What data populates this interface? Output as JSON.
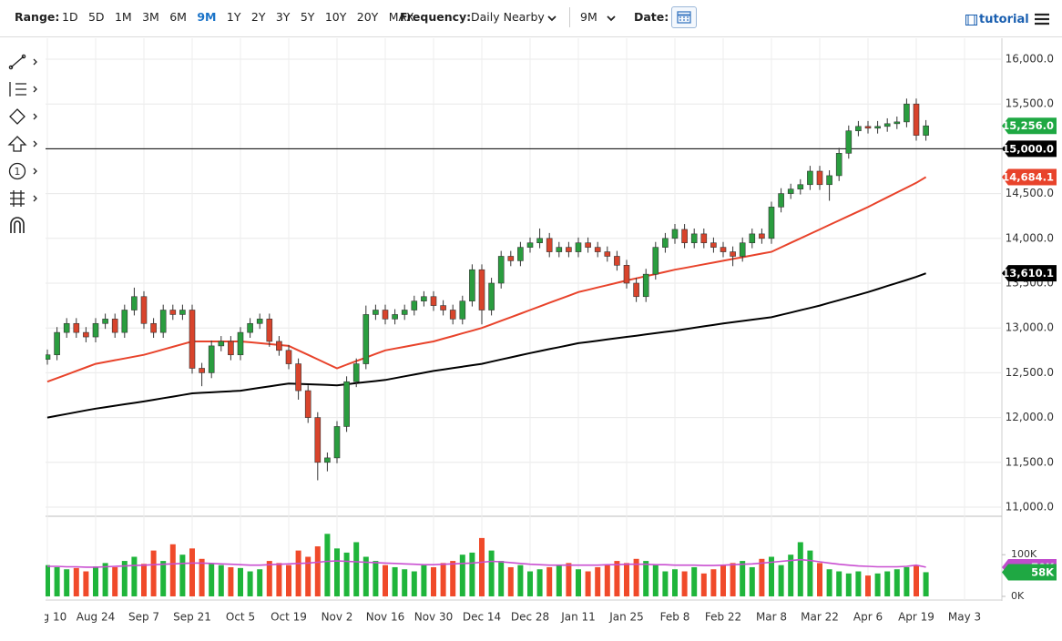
{
  "toolbar": {
    "range_label": "Range:",
    "ranges": [
      "1D",
      "5D",
      "1M",
      "3M",
      "6M",
      "9M",
      "1Y",
      "2Y",
      "3Y",
      "5Y",
      "10Y",
      "20Y",
      "MAX"
    ],
    "active_range": "9M",
    "frequency_label": "Frequency:",
    "frequency": "Daily Nearby",
    "period": "9M",
    "date_label": "Date:",
    "tutorial": "tutorial",
    "tool_badge": "1"
  },
  "chart_data": {
    "type": "candlestick",
    "categories": [
      "Aug 10",
      null,
      null,
      null,
      null,
      "Aug 24",
      null,
      null,
      null,
      null,
      "Sep 7",
      null,
      null,
      null,
      null,
      "Sep 21",
      null,
      null,
      null,
      null,
      "Oct 5",
      null,
      null,
      null,
      null,
      "Oct 19",
      null,
      null,
      null,
      null,
      "Nov 2",
      null,
      null,
      null,
      null,
      "Nov 16",
      null,
      null,
      null,
      null,
      "Nov 30",
      null,
      null,
      null,
      null,
      "Dec 14",
      null,
      null,
      null,
      null,
      "Dec 28",
      null,
      null,
      null,
      null,
      "Jan 11",
      null,
      null,
      null,
      null,
      "Jan 25",
      null,
      null,
      null,
      null,
      "Feb 8",
      null,
      null,
      null,
      null,
      "Feb 22",
      null,
      null,
      null,
      null,
      "Mar 8",
      null,
      null,
      null,
      null,
      "Mar 22",
      null,
      null,
      null,
      null,
      "Apr 6",
      null,
      null,
      null,
      null,
      "Apr 19",
      null,
      null,
      null,
      null,
      "May 3"
    ],
    "candles": {
      "open": [
        12650,
        12700,
        12950,
        13050,
        12950,
        12900,
        13050,
        13100,
        12950,
        13200,
        13350,
        13050,
        12950,
        13200,
        13150,
        13200,
        12550,
        12500,
        12800,
        12850,
        12700,
        12950,
        13050,
        13100,
        12850,
        12750,
        12600,
        12300,
        12000,
        11500,
        11550,
        11900,
        12400,
        12600,
        13150,
        13200,
        13100,
        13150,
        13200,
        13300,
        13350,
        13250,
        13200,
        13100,
        13300,
        13650,
        13200,
        13500,
        13800,
        13750,
        13900,
        13950,
        14000,
        13850,
        13900,
        13850,
        13950,
        13900,
        13850,
        13800,
        13700,
        13500,
        13350,
        13600,
        13900,
        14000,
        14100,
        13950,
        14050,
        13950,
        13900,
        13850,
        13800,
        13950,
        14050,
        14000,
        14350,
        14500,
        14550,
        14600,
        14750,
        14600,
        14700,
        14950,
        15200,
        15250,
        15230,
        15250,
        15280,
        15300,
        15500,
        15150,
        null,
        null,
        null,
        null
      ],
      "high": [
        12760,
        13010,
        13110,
        13110,
        13010,
        13110,
        13160,
        13160,
        13260,
        13450,
        13410,
        13110,
        13260,
        13260,
        13260,
        13260,
        12610,
        12860,
        12910,
        12910,
        13010,
        13110,
        13160,
        13160,
        12910,
        12810,
        12660,
        12360,
        12060,
        11610,
        11960,
        12460,
        12660,
        13250,
        13260,
        13260,
        13210,
        13260,
        13360,
        13410,
        13410,
        13310,
        13260,
        13360,
        13710,
        13710,
        13560,
        13860,
        13860,
        13960,
        14010,
        14110,
        14060,
        13960,
        13960,
        14010,
        14010,
        13960,
        13910,
        13860,
        13760,
        13560,
        13660,
        13960,
        14060,
        14160,
        14160,
        14110,
        14110,
        14010,
        13960,
        13910,
        14010,
        14110,
        14110,
        14410,
        14560,
        14610,
        14660,
        14810,
        14810,
        14760,
        15010,
        15260,
        15310,
        15310,
        15310,
        15340,
        15360,
        15560,
        15560,
        15320,
        null,
        null,
        null,
        null
      ],
      "low": [
        12590,
        12640,
        12890,
        12890,
        12840,
        12840,
        12990,
        12890,
        12890,
        13140,
        12990,
        12890,
        12890,
        13090,
        13090,
        12490,
        12350,
        12440,
        12740,
        12640,
        12640,
        12890,
        12990,
        12790,
        12690,
        12540,
        12200,
        11940,
        11300,
        11400,
        11490,
        11840,
        12340,
        12540,
        13090,
        13040,
        13040,
        13090,
        13140,
        13240,
        13190,
        13140,
        13040,
        13040,
        13240,
        13040,
        13140,
        13440,
        13690,
        13690,
        13840,
        13890,
        13790,
        13790,
        13790,
        13790,
        13840,
        13790,
        13740,
        13640,
        13440,
        13290,
        13290,
        13540,
        13840,
        13940,
        13890,
        13890,
        13890,
        13840,
        13790,
        13690,
        13740,
        13890,
        13940,
        13940,
        14290,
        14440,
        14490,
        14540,
        14540,
        14420,
        14640,
        14890,
        15140,
        15170,
        15170,
        15190,
        15220,
        15240,
        15090,
        15090,
        null,
        null,
        null,
        null
      ],
      "close": [
        12700,
        12950,
        13050,
        12950,
        12900,
        13050,
        13100,
        12950,
        13200,
        13350,
        13050,
        12950,
        13200,
        13150,
        13200,
        12550,
        12500,
        12800,
        12850,
        12700,
        12950,
        13050,
        13100,
        12850,
        12750,
        12600,
        12300,
        12000,
        11500,
        11550,
        11900,
        12400,
        12600,
        13150,
        13200,
        13100,
        13150,
        13200,
        13300,
        13350,
        13250,
        13200,
        13100,
        13300,
        13650,
        13200,
        13500,
        13800,
        13750,
        13900,
        13950,
        14000,
        13850,
        13900,
        13850,
        13950,
        13900,
        13850,
        13800,
        13700,
        13500,
        13350,
        13600,
        13900,
        14000,
        14100,
        13950,
        14050,
        13950,
        13900,
        13850,
        13800,
        13950,
        14050,
        14000,
        14350,
        14500,
        14550,
        14600,
        14750,
        14600,
        14700,
        14950,
        15200,
        15250,
        15230,
        15250,
        15280,
        15300,
        15500,
        15150,
        15256,
        null,
        null,
        null,
        null
      ],
      "up_color": "#2a9d3f",
      "down_color": "#d8442c"
    },
    "lines": [
      {
        "color": "#e8432b",
        "values": [
          12400,
          12440,
          12480,
          12520,
          12560,
          12600,
          12620,
          12640,
          12660,
          12680,
          12700,
          12730,
          12760,
          12790,
          12820,
          12850,
          12850,
          12850,
          12850,
          12850,
          12850,
          12840,
          12830,
          12820,
          12810,
          12800,
          12750,
          12700,
          12650,
          12600,
          12550,
          12590,
          12630,
          12670,
          12710,
          12750,
          12770,
          12790,
          12810,
          12830,
          12850,
          12880,
          12910,
          12940,
          12970,
          13000,
          13040,
          13080,
          13120,
          13160,
          13200,
          13240,
          13280,
          13320,
          13360,
          13400,
          13426,
          13452,
          13478,
          13504,
          13530,
          13554,
          13578,
          13602,
          13626,
          13650,
          13670,
          13690,
          13710,
          13730,
          13750,
          13770,
          13790,
          13810,
          13830,
          13850,
          13900,
          13950,
          14000,
          14050,
          14100,
          14150,
          14200,
          14250,
          14300,
          14350,
          14404,
          14458,
          14512,
          14566,
          14620,
          14684.1,
          null,
          null,
          null,
          null
        ]
      },
      {
        "color": "#000000",
        "values": [
          12000,
          12020,
          12040,
          12060,
          12080,
          12100,
          12116,
          12132,
          12148,
          12164,
          12180,
          12198,
          12216,
          12234,
          12252,
          12270,
          12276,
          12282,
          12288,
          12294,
          12300,
          12316,
          12332,
          12348,
          12364,
          12380,
          12376,
          12372,
          12368,
          12364,
          12360,
          12372,
          12384,
          12396,
          12408,
          12420,
          12440,
          12460,
          12480,
          12500,
          12520,
          12536,
          12552,
          12568,
          12584,
          12600,
          12624,
          12648,
          12672,
          12696,
          12720,
          12742,
          12764,
          12786,
          12808,
          12830,
          12844,
          12858,
          12872,
          12886,
          12900,
          12914,
          12928,
          12942,
          12956,
          12970,
          12986,
          13002,
          13018,
          13034,
          13050,
          13064,
          13078,
          13092,
          13106,
          13120,
          13146,
          13172,
          13198,
          13224,
          13250,
          13280,
          13310,
          13340,
          13370,
          13400,
          13434,
          13468,
          13502,
          13536,
          13570,
          13610.1,
          null,
          null,
          null,
          null
        ]
      }
    ],
    "ylim": [
      11000,
      16000
    ],
    "yticks": [
      {
        "value": 11000,
        "label": "11,000.0"
      },
      {
        "value": 11500,
        "label": "11,500.0"
      },
      {
        "value": 12000,
        "label": "12,000.0"
      },
      {
        "value": 12500,
        "label": "12,500.0"
      },
      {
        "value": 13000,
        "label": "13,000.0"
      },
      {
        "value": 13500,
        "label": "13,500.0"
      },
      {
        "value": 14000,
        "label": "14,000.0"
      },
      {
        "value": 14500,
        "label": "14,500.0"
      },
      {
        "value": 15000,
        "label": "15,000.0"
      },
      {
        "value": 15500,
        "label": "15,500.0"
      },
      {
        "value": 16000,
        "label": "16,000.0"
      }
    ],
    "grid": true,
    "hline": {
      "value": 15000,
      "label": "15,000.0",
      "color": "#000000"
    },
    "badges": [
      {
        "value": 15256,
        "label": "15,256.0",
        "color": "#1fa843"
      },
      {
        "value": 14684.1,
        "label": "14,684.1",
        "color": "#e8432b"
      },
      {
        "value": 13610.1,
        "label": "13,610.1",
        "color": "#000000"
      }
    ],
    "volume": {
      "values": [
        75,
        70,
        65,
        68,
        60,
        72,
        80,
        70,
        85,
        95,
        78,
        110,
        85,
        125,
        100,
        115,
        90,
        80,
        75,
        70,
        68,
        60,
        65,
        85,
        80,
        75,
        110,
        95,
        120,
        150,
        115,
        105,
        130,
        95,
        85,
        75,
        70,
        65,
        60,
        75,
        70,
        80,
        85,
        100,
        105,
        140,
        110,
        85,
        70,
        75,
        60,
        65,
        70,
        75,
        80,
        65,
        60,
        70,
        75,
        85,
        80,
        90,
        85,
        75,
        60,
        65,
        60,
        70,
        55,
        65,
        75,
        80,
        85,
        70,
        90,
        95,
        75,
        100,
        130,
        110,
        80,
        65,
        60,
        55,
        60,
        50,
        55,
        60,
        65,
        70,
        75,
        58,
        null,
        null,
        null,
        null
      ],
      "ma": [
        72,
        72,
        71,
        71,
        70,
        70,
        71,
        72,
        73,
        74,
        75,
        76,
        77,
        78,
        79,
        80,
        80,
        79,
        78,
        77,
        76,
        75,
        75,
        76,
        77,
        78,
        79,
        80,
        82,
        84,
        85,
        84,
        83,
        82,
        81,
        80,
        79,
        78,
        77,
        76,
        76,
        77,
        78,
        79,
        80,
        82,
        84,
        83,
        81,
        79,
        77,
        76,
        75,
        75,
        75,
        75,
        75,
        75,
        76,
        76,
        77,
        77,
        77,
        76,
        76,
        75,
        75,
        75,
        74,
        74,
        75,
        76,
        77,
        78,
        80,
        82,
        84,
        86,
        88,
        86,
        83,
        80,
        77,
        75,
        73,
        72,
        71,
        71,
        71,
        72,
        75,
        70,
        null,
        null,
        null,
        null
      ],
      "ma_color": "#c94fd1",
      "up_color": "#1fb53b",
      "down_color": "#f04a2a",
      "ylim": [
        0,
        190
      ],
      "yticks": [
        {
          "value": 0,
          "label": "0K"
        },
        {
          "value": 100,
          "label": "100K"
        }
      ],
      "badges": [
        {
          "value": 70,
          "label": "70K",
          "color": "#c04ccc"
        },
        {
          "value": 58,
          "label": "58K",
          "color": "#1fa843"
        }
      ]
    }
  }
}
